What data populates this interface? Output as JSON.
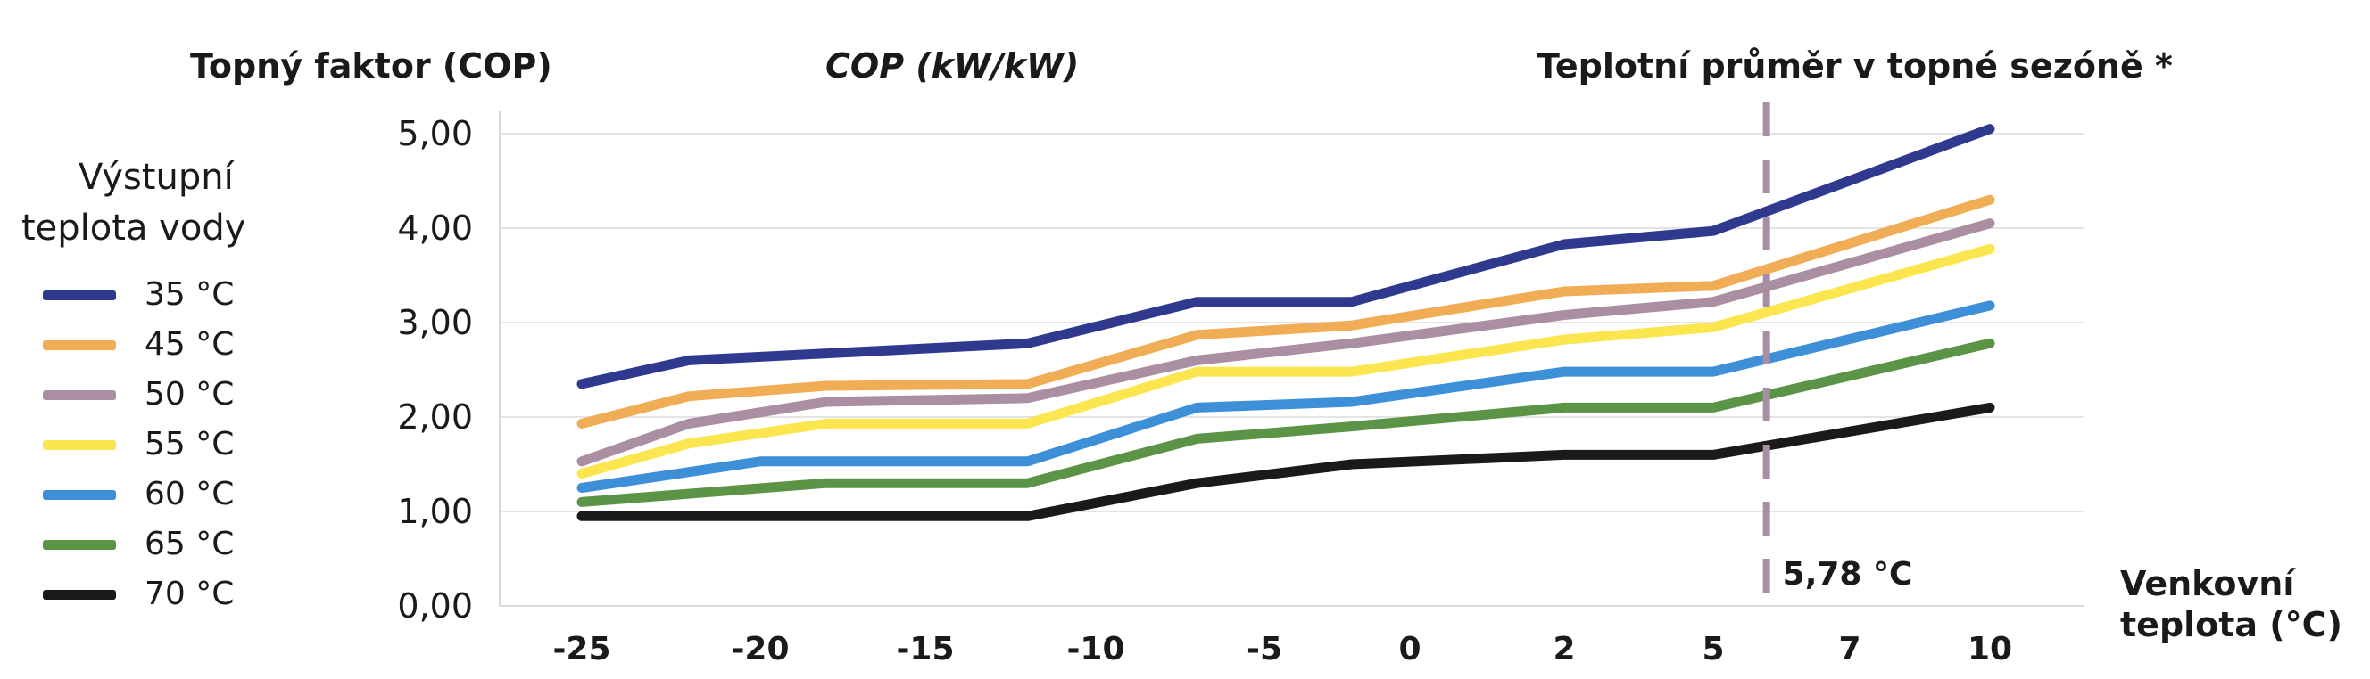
{
  "header": {
    "left": "Topný faktor (COP)",
    "center": "COP (kW/kW)",
    "right": "Teplotní průměr v topné sezóně *"
  },
  "legend": {
    "title_line1": "Výstupní",
    "title_line2": "teplota vody"
  },
  "chart_data": {
    "type": "line",
    "x": [
      "-25",
      "-20",
      "-15",
      "-10",
      "-5",
      "0",
      "2",
      "5",
      "7",
      "10"
    ],
    "xlabel": "Venkovní teplota (°C)",
    "xlabel_line1": "Venkovní",
    "xlabel_line2": "teplota (°C)",
    "ylabel": "COP (kW/kW)",
    "ylim": [
      0,
      5
    ],
    "yticks": [
      "0,00",
      "1,00",
      "2,00",
      "3,00",
      "4,00",
      "5,00"
    ],
    "grid": true,
    "legend_position": "left",
    "marker": {
      "x": 5.78,
      "label": "5,78 °C",
      "color": "#a88ea2"
    },
    "series": [
      {
        "name": "35 °C",
        "color": "#2f3a8f",
        "points": [
          [
            -25,
            2.35
          ],
          [
            -22,
            2.6
          ],
          [
            -12,
            2.78
          ],
          [
            -7,
            3.22
          ],
          [
            -2,
            3.22
          ],
          [
            2,
            3.83
          ],
          [
            5,
            3.97
          ],
          [
            10,
            5.05
          ]
        ]
      },
      {
        "name": "45 °C",
        "color": "#f0ad55",
        "points": [
          [
            -25,
            1.93
          ],
          [
            -22,
            2.22
          ],
          [
            -18,
            2.33
          ],
          [
            -12,
            2.35
          ],
          [
            -7,
            2.87
          ],
          [
            -2,
            2.97
          ],
          [
            2,
            3.33
          ],
          [
            5,
            3.39
          ],
          [
            10,
            4.3
          ]
        ]
      },
      {
        "name": "50 °C",
        "color": "#aa8ea2",
        "points": [
          [
            -25,
            1.53
          ],
          [
            -22,
            1.93
          ],
          [
            -18,
            2.16
          ],
          [
            -12,
            2.2
          ],
          [
            -7,
            2.6
          ],
          [
            -2,
            2.78
          ],
          [
            2,
            3.08
          ],
          [
            5,
            3.22
          ],
          [
            10,
            4.05
          ]
        ]
      },
      {
        "name": "55 °C",
        "color": "#fbe64f",
        "points": [
          [
            -25,
            1.4
          ],
          [
            -22,
            1.72
          ],
          [
            -18,
            1.93
          ],
          [
            -12,
            1.93
          ],
          [
            -7,
            2.48
          ],
          [
            -2,
            2.48
          ],
          [
            2,
            2.82
          ],
          [
            5,
            2.95
          ],
          [
            10,
            3.78
          ]
        ]
      },
      {
        "name": "60 °C",
        "color": "#3d8fd8",
        "points": [
          [
            -25,
            1.25
          ],
          [
            -20,
            1.53
          ],
          [
            -12,
            1.53
          ],
          [
            -7,
            2.1
          ],
          [
            -2,
            2.16
          ],
          [
            2,
            2.48
          ],
          [
            5,
            2.48
          ],
          [
            10,
            3.18
          ]
        ]
      },
      {
        "name": "65 °C",
        "color": "#5b9446",
        "points": [
          [
            -25,
            1.1
          ],
          [
            -18,
            1.3
          ],
          [
            -12,
            1.3
          ],
          [
            -7,
            1.77
          ],
          [
            -2,
            1.9
          ],
          [
            2,
            2.1
          ],
          [
            5,
            2.1
          ],
          [
            10,
            2.78
          ]
        ]
      },
      {
        "name": "70 °C",
        "color": "#1a1a1a",
        "points": [
          [
            -25,
            0.95
          ],
          [
            -12,
            0.95
          ],
          [
            -7,
            1.3
          ],
          [
            -2,
            1.5
          ],
          [
            2,
            1.6
          ],
          [
            5,
            1.6
          ],
          [
            10,
            2.1
          ]
        ]
      }
    ]
  }
}
